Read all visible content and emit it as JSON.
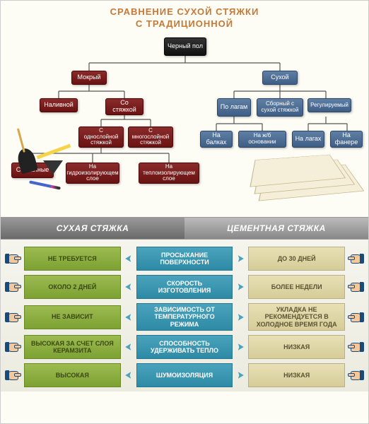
{
  "title_line1": "СРАВНЕНИЕ СУХОЙ СТЯЖКИ",
  "title_line2": "С ТРАДИЦИОННОЙ",
  "tree": {
    "root": "Черный пол",
    "wet": "Мокрый",
    "dry": "Сухой",
    "naливной": "Наливной",
    "soStyazhkoy": "Со стяжкой",
    "sOdno": "С однослойной стяжкой",
    "sMnogo": "С многослойной стяжкой",
    "svyazannye": "Связанные",
    "naGidro": "На гидроизолирующем слое",
    "naTeplo": "На теплоизолирующем слое",
    "poLagam": "По лагам",
    "sbornyy": "Сборный с сухой стяжкой",
    "regul": "Регулируемый",
    "naBalkah": "На балках",
    "naZhb": "На ж/б основании",
    "naLagah": "На лагах",
    "naFanere": "На фанере"
  },
  "colors": {
    "black": "#1a1a1a",
    "red": "#7a1c1c",
    "blue": "#4a6a90",
    "green": "#8ab042",
    "teal": "#3a96b2",
    "beige": "#ded5a8",
    "orange": "#c77835"
  },
  "bars": {
    "left": "СУХАЯ СТЯЖКА",
    "right": "ЦЕМЕНТНАЯ СТЯЖКА"
  },
  "rows": [
    {
      "left": "НЕ ТРЕБУЕТСЯ",
      "mid": "ПРОСЫХАНИЕ ПОВЕРХНОСТИ",
      "right": "ДО 30 ДНЕЙ"
    },
    {
      "left": "ОКОЛО 2 ДНЕЙ",
      "mid": "СКОРОСТЬ ИЗГОТОВЛЕНИЯ",
      "right": "БОЛЕЕ НЕДЕЛИ"
    },
    {
      "left": "НЕ ЗАВИСИТ",
      "mid": "ЗАВИСИМОСТЬ ОТ ТЕМПЕРАТУРНОГО РЕЖИМА",
      "right": "УКЛАДКА НЕ РЕКОМЕНДУЕТСЯ В ХОЛОДНОЕ ВРЕМЯ ГОДА"
    },
    {
      "left": "ВЫСОКАЯ ЗА СЧЕТ СЛОЯ КЕРАМЗИТА",
      "mid": "СПОСОБНОСТЬ УДЕРЖИВАТЬ ТЕПЛО",
      "right": "НИЗКАЯ"
    },
    {
      "left": "ВЫСОКАЯ",
      "mid": "ШУМОИЗОЛЯЦИЯ",
      "right": "НИЗКАЯ"
    }
  ]
}
